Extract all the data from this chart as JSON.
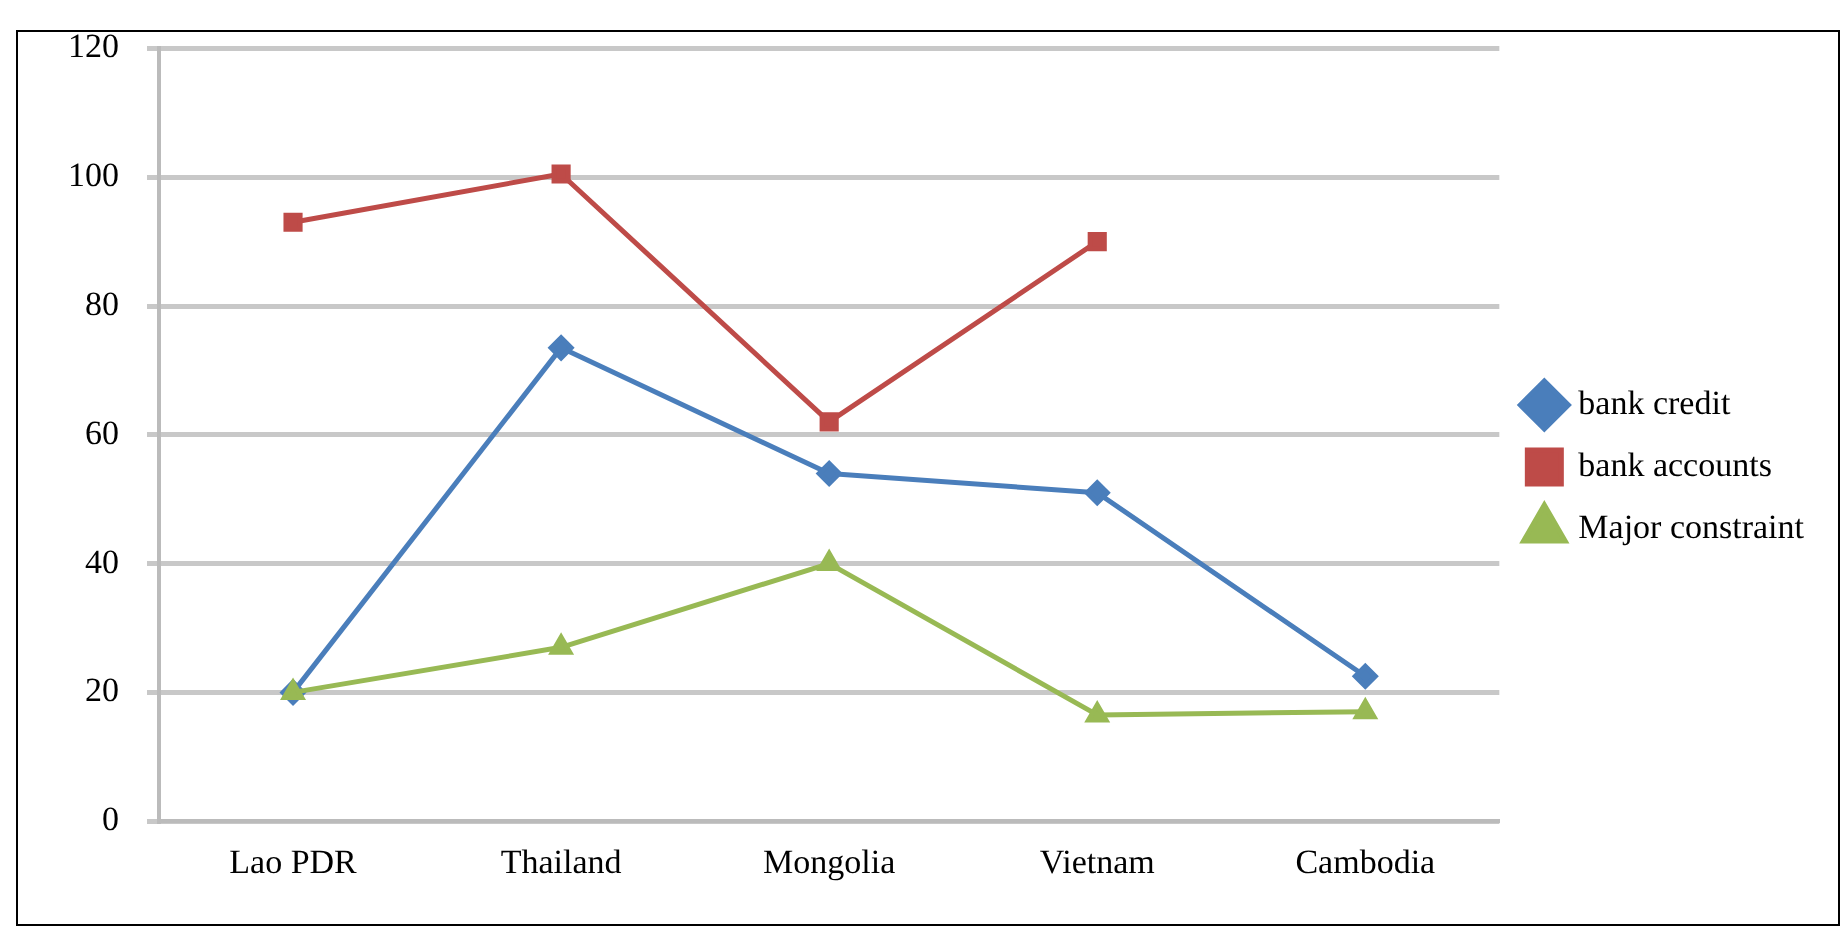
{
  "chart_data": {
    "type": "line",
    "categories": [
      "Lao PDR",
      "Thailand",
      "Mongolia",
      "Vietnam",
      "Cambodia"
    ],
    "series": [
      {
        "name": "bank credit",
        "color": "#4a7ebb",
        "marker": "diamond",
        "values": [
          20,
          73.5,
          54,
          51,
          22.5
        ]
      },
      {
        "name": "bank accounts",
        "color": "#be4b48",
        "marker": "square",
        "values": [
          93,
          100.5,
          62,
          90,
          null
        ]
      },
      {
        "name": "Major constraint",
        "color": "#98b954",
        "marker": "triangle",
        "values": [
          20,
          27,
          40,
          16.5,
          17
        ]
      }
    ],
    "ylim": [
      0,
      120
    ],
    "yticks": [
      0,
      20,
      40,
      60,
      80,
      100,
      120
    ],
    "grid": "y",
    "legend": "right",
    "line_style": "solid"
  }
}
